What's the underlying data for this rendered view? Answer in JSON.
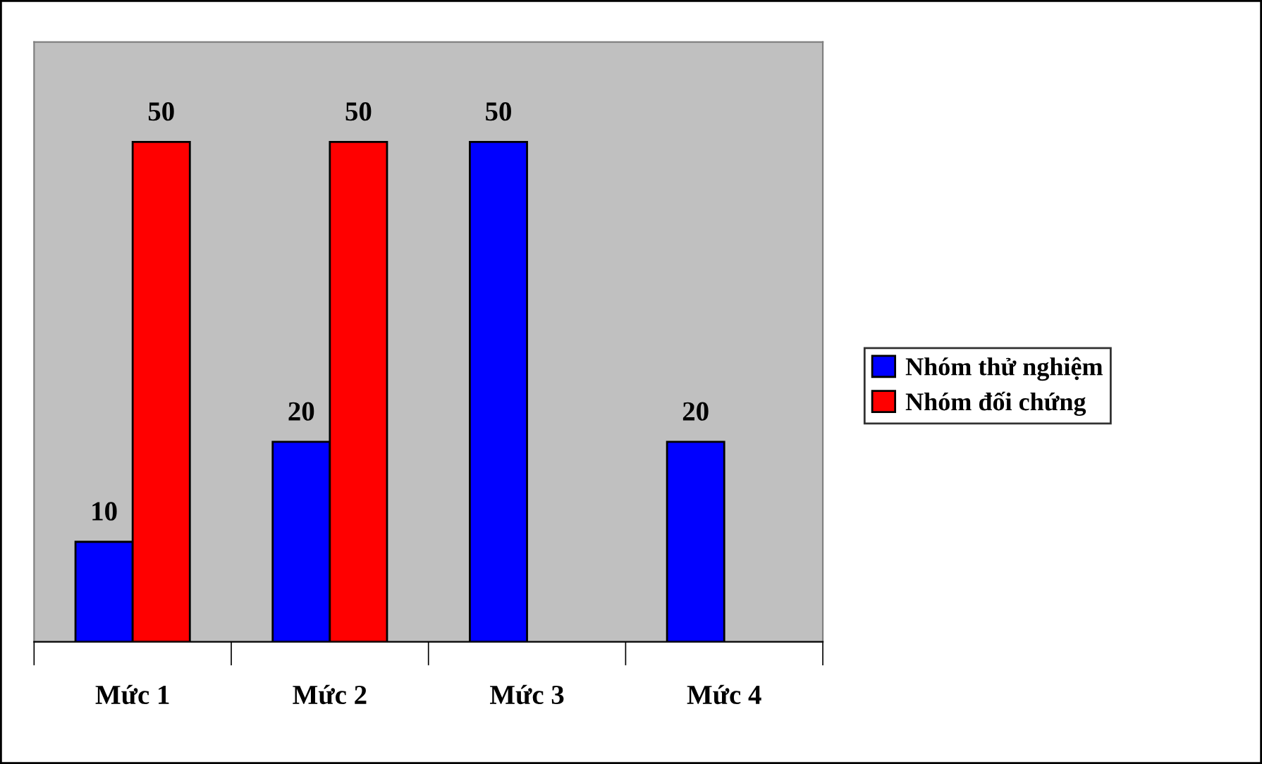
{
  "chart_data": {
    "type": "bar",
    "categories": [
      "Mức 1",
      "Mức 2",
      "Mức 3",
      "Mức 4"
    ],
    "series": [
      {
        "name": "Nhóm thử nghiệm",
        "color": "#0000ff",
        "values": [
          10,
          20,
          50,
          20
        ]
      },
      {
        "name": "Nhóm đối chứng",
        "color": "#ff0000",
        "values": [
          50,
          50,
          null,
          null
        ]
      }
    ],
    "ylim": [
      0,
      60
    ],
    "tick_labels": "x",
    "data_labels": true,
    "legend": "right",
    "grid": false
  }
}
